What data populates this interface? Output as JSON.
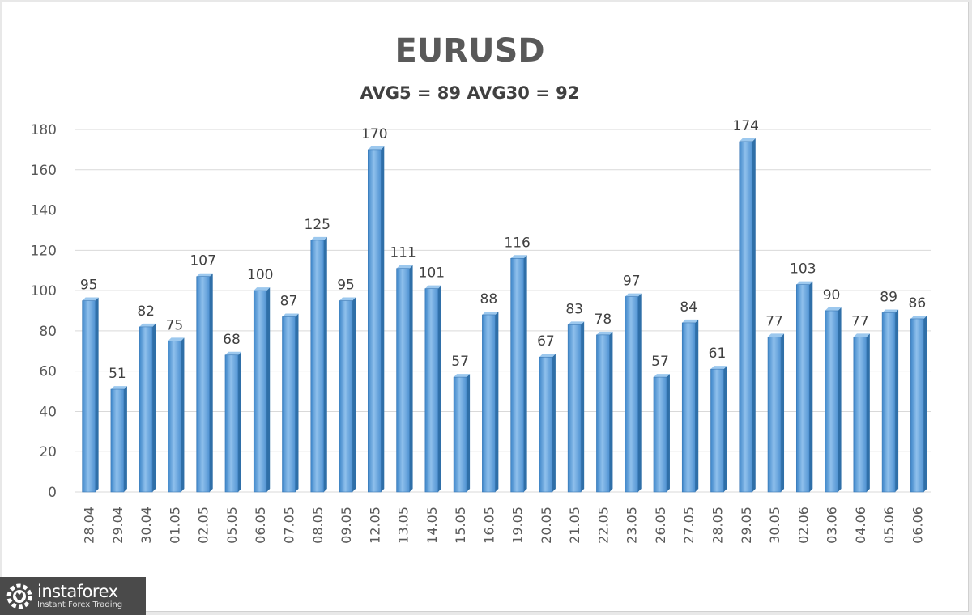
{
  "chart_data": {
    "type": "bar",
    "title": "EURUSD",
    "subtitle": "AVG5 = 89 AVG30 = 92",
    "categories": [
      "28.04",
      "29.04",
      "30.04",
      "01.05",
      "02.05",
      "05.05",
      "06.05",
      "07.05",
      "08.05",
      "09.05",
      "12.05",
      "13.05",
      "14.05",
      "15.05",
      "16.05",
      "19.05",
      "20.05",
      "21.05",
      "22.05",
      "23.05",
      "26.05",
      "27.05",
      "28.05",
      "29.05",
      "30.05",
      "02.06",
      "03.06",
      "04.06",
      "05.06",
      "06.06"
    ],
    "values": [
      95,
      51,
      82,
      75,
      107,
      68,
      100,
      87,
      125,
      95,
      170,
      111,
      101,
      57,
      88,
      116,
      67,
      83,
      78,
      97,
      57,
      84,
      61,
      174,
      77,
      103,
      90,
      77,
      89,
      86
    ],
    "y_ticks": [
      "0",
      "20",
      "40",
      "60",
      "80",
      "100",
      "120",
      "140",
      "160",
      "180"
    ],
    "ylim": [
      0,
      180
    ],
    "grid": true,
    "data_labels": true,
    "bar_color": "#5b9bd5",
    "legend": "none"
  },
  "logo": {
    "name": "instaforex",
    "tagline": "Instant Forex Trading",
    "icon": "gear-bull-logo-icon",
    "background": "#4a4a4a"
  }
}
